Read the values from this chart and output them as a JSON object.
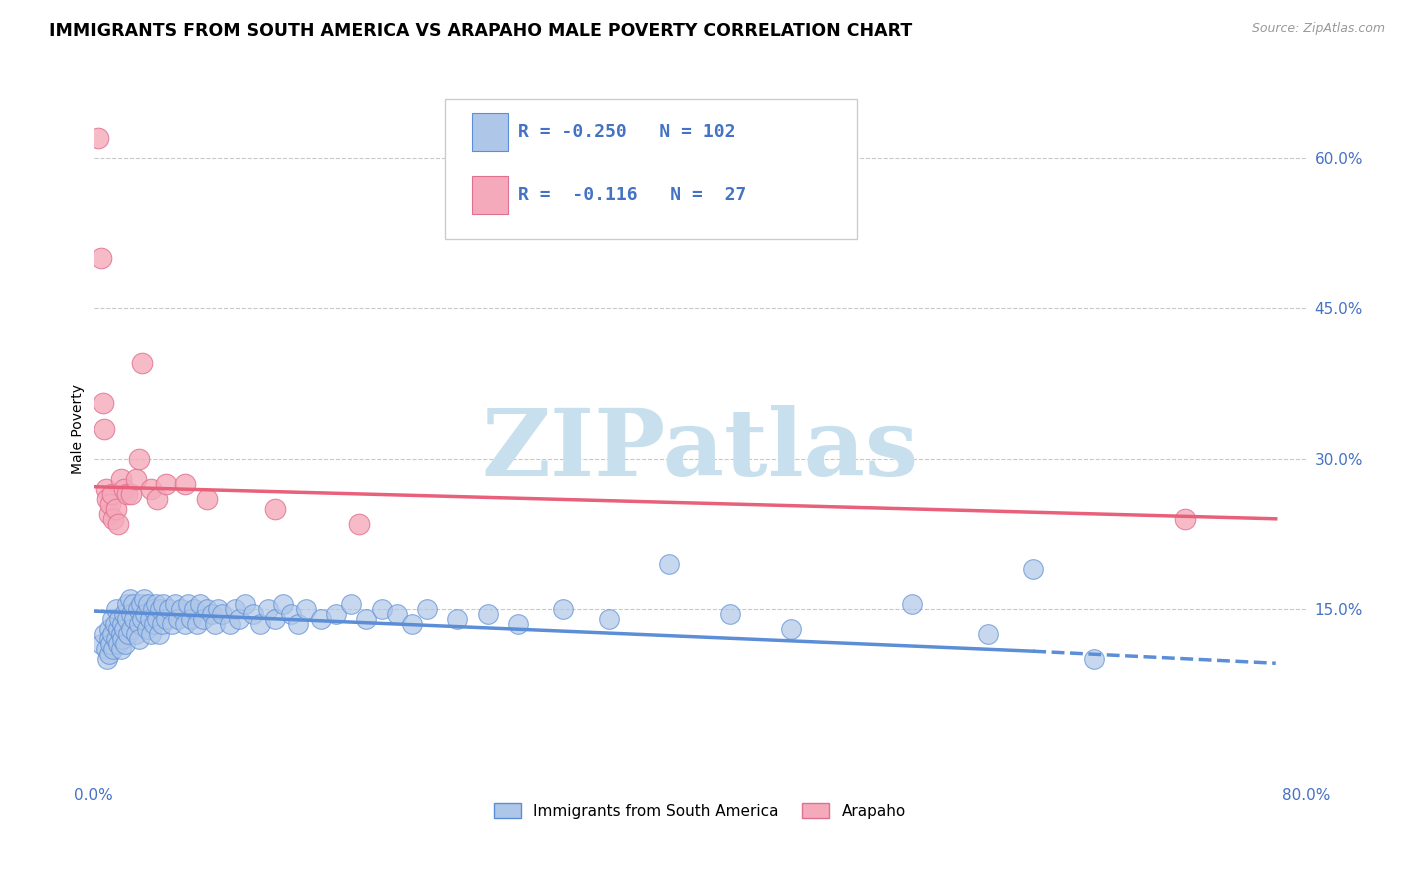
{
  "title": "IMMIGRANTS FROM SOUTH AMERICA VS ARAPAHO MALE POVERTY CORRELATION CHART",
  "source_text": "Source: ZipAtlas.com",
  "ylabel": "Male Poverty",
  "legend_label_blue": "Immigrants from South America",
  "legend_label_pink": "Arapaho",
  "R_blue": -0.25,
  "N_blue": 102,
  "R_pink": -0.116,
  "N_pink": 27,
  "xlim": [
    0.0,
    0.8
  ],
  "ylim": [
    -0.02,
    0.68
  ],
  "yticks": [
    0.15,
    0.3,
    0.45,
    0.6
  ],
  "ytick_labels": [
    "15.0%",
    "30.0%",
    "45.0%",
    "60.0%"
  ],
  "xticks": [
    0.0,
    0.2,
    0.4,
    0.6,
    0.8
  ],
  "xtick_labels": [
    "0.0%",
    "",
    "",
    "",
    "80.0%"
  ],
  "color_blue_fill": "#AEC6E8",
  "color_blue_edge": "#5B8ED6",
  "color_pink_fill": "#F4AABA",
  "color_pink_edge": "#E07090",
  "color_pink_line": "#E8607A",
  "color_blue_line": "#5B8ED6",
  "color_text_axis": "#4472C4",
  "color_grid": "#BBBBBB",
  "background_color": "#FFFFFF",
  "watermark": "ZIPatlas",
  "watermark_color": "#C8E0EE",
  "title_fontsize": 12.5,
  "axis_label_fontsize": 10,
  "tick_fontsize": 11,
  "blue_scatter_x": [
    0.005,
    0.007,
    0.008,
    0.009,
    0.01,
    0.01,
    0.01,
    0.011,
    0.012,
    0.012,
    0.013,
    0.014,
    0.015,
    0.015,
    0.016,
    0.016,
    0.017,
    0.018,
    0.018,
    0.019,
    0.019,
    0.02,
    0.02,
    0.021,
    0.022,
    0.022,
    0.023,
    0.024,
    0.025,
    0.025,
    0.026,
    0.027,
    0.028,
    0.029,
    0.03,
    0.03,
    0.031,
    0.032,
    0.033,
    0.034,
    0.035,
    0.036,
    0.037,
    0.038,
    0.039,
    0.04,
    0.041,
    0.042,
    0.043,
    0.044,
    0.045,
    0.046,
    0.048,
    0.05,
    0.052,
    0.054,
    0.056,
    0.058,
    0.06,
    0.062,
    0.064,
    0.066,
    0.068,
    0.07,
    0.072,
    0.075,
    0.078,
    0.08,
    0.082,
    0.085,
    0.09,
    0.093,
    0.096,
    0.1,
    0.105,
    0.11,
    0.115,
    0.12,
    0.125,
    0.13,
    0.135,
    0.14,
    0.15,
    0.16,
    0.17,
    0.18,
    0.19,
    0.2,
    0.21,
    0.22,
    0.24,
    0.26,
    0.28,
    0.31,
    0.34,
    0.38,
    0.42,
    0.46,
    0.54,
    0.59,
    0.62,
    0.66
  ],
  "blue_scatter_y": [
    0.115,
    0.125,
    0.11,
    0.1,
    0.13,
    0.12,
    0.105,
    0.115,
    0.14,
    0.125,
    0.11,
    0.135,
    0.15,
    0.12,
    0.13,
    0.115,
    0.14,
    0.125,
    0.11,
    0.135,
    0.12,
    0.145,
    0.13,
    0.115,
    0.155,
    0.14,
    0.125,
    0.16,
    0.145,
    0.13,
    0.155,
    0.14,
    0.125,
    0.15,
    0.135,
    0.12,
    0.155,
    0.14,
    0.16,
    0.145,
    0.13,
    0.155,
    0.14,
    0.125,
    0.15,
    0.135,
    0.155,
    0.14,
    0.125,
    0.15,
    0.135,
    0.155,
    0.14,
    0.15,
    0.135,
    0.155,
    0.14,
    0.15,
    0.135,
    0.155,
    0.14,
    0.15,
    0.135,
    0.155,
    0.14,
    0.15,
    0.145,
    0.135,
    0.15,
    0.145,
    0.135,
    0.15,
    0.14,
    0.155,
    0.145,
    0.135,
    0.15,
    0.14,
    0.155,
    0.145,
    0.135,
    0.15,
    0.14,
    0.145,
    0.155,
    0.14,
    0.15,
    0.145,
    0.135,
    0.15,
    0.14,
    0.145,
    0.135,
    0.15,
    0.14,
    0.195,
    0.145,
    0.13,
    0.155,
    0.125,
    0.19,
    0.1
  ],
  "pink_scatter_x": [
    0.003,
    0.005,
    0.006,
    0.007,
    0.008,
    0.009,
    0.01,
    0.011,
    0.012,
    0.013,
    0.015,
    0.016,
    0.018,
    0.02,
    0.022,
    0.025,
    0.028,
    0.03,
    0.032,
    0.038,
    0.042,
    0.048,
    0.06,
    0.075,
    0.12,
    0.175,
    0.72
  ],
  "pink_scatter_y": [
    0.62,
    0.5,
    0.355,
    0.33,
    0.27,
    0.26,
    0.245,
    0.255,
    0.265,
    0.24,
    0.25,
    0.235,
    0.28,
    0.27,
    0.265,
    0.265,
    0.28,
    0.3,
    0.395,
    0.27,
    0.26,
    0.275,
    0.275,
    0.26,
    0.25,
    0.235,
    0.24
  ],
  "blue_line_x_start": 0.0,
  "blue_line_x_end": 0.62,
  "blue_line_y_start": 0.148,
  "blue_line_y_end": 0.108,
  "blue_line_dash_x_start": 0.62,
  "blue_line_dash_x_end": 0.78,
  "blue_line_dash_y_start": 0.108,
  "blue_line_dash_y_end": 0.096,
  "pink_line_x_start": 0.0,
  "pink_line_x_end": 0.78,
  "pink_line_y_start": 0.272,
  "pink_line_y_end": 0.24
}
